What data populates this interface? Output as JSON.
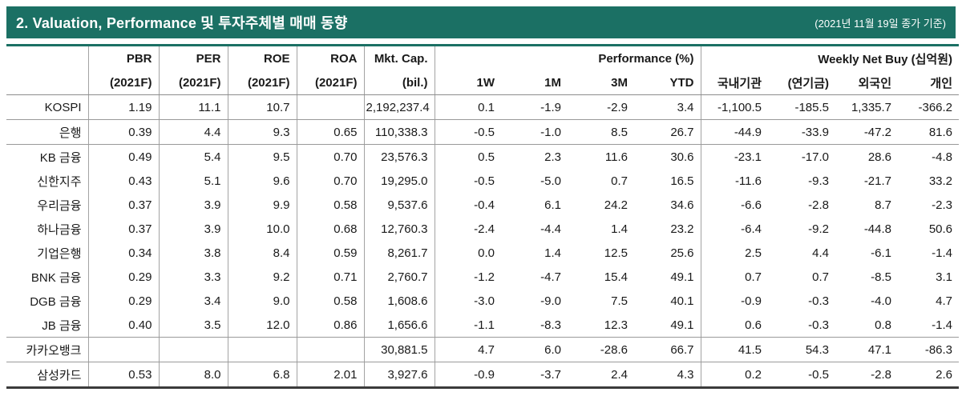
{
  "header_bar": {
    "title": "2. Valuation, Performance 및 투자주체별 매매 동향",
    "date_note": "(2021년 11월 19일 종가 기준)"
  },
  "colors": {
    "accent_teal": "#1b7064",
    "grid_gray": "#9a9a9a",
    "bottom_border_dark": "#3b3b3b",
    "title_text": "#ffffff"
  },
  "table": {
    "metric_headers": [
      {
        "line1": "PBR",
        "line2": "(2021F)"
      },
      {
        "line1": "PER",
        "line2": "(2021F)"
      },
      {
        "line1": "ROE",
        "line2": "(2021F)"
      },
      {
        "line1": "ROA",
        "line2": "(2021F)"
      },
      {
        "line1": "Mkt. Cap.",
        "line2": "(bil.)"
      }
    ],
    "groups": [
      {
        "label": "Performance (%)",
        "columns": [
          "1W",
          "1M",
          "3M",
          "YTD"
        ]
      },
      {
        "label": "Weekly Net Buy (십억원)",
        "columns": [
          "국내기관",
          "(연기금)",
          "외국인",
          "개인"
        ]
      }
    ],
    "rows": [
      {
        "name": "KOSPI",
        "values": [
          "1.19",
          "11.1",
          "10.7",
          "",
          "2,192,237.4",
          "0.1",
          "-1.9",
          "-2.9",
          "3.4",
          "-1,100.5",
          "-185.5",
          "1,335.7",
          "-366.2"
        ],
        "separator_below": true
      },
      {
        "name": "은행",
        "values": [
          "0.39",
          "4.4",
          "9.3",
          "0.65",
          "110,338.3",
          "-0.5",
          "-1.0",
          "8.5",
          "26.7",
          "-44.9",
          "-33.9",
          "-47.2",
          "81.6"
        ],
        "separator_below": true
      },
      {
        "name": "KB 금융",
        "values": [
          "0.49",
          "5.4",
          "9.5",
          "0.70",
          "23,576.3",
          "0.5",
          "2.3",
          "11.6",
          "30.6",
          "-23.1",
          "-17.0",
          "28.6",
          "-4.8"
        ],
        "separator_below": false
      },
      {
        "name": "신한지주",
        "values": [
          "0.43",
          "5.1",
          "9.6",
          "0.70",
          "19,295.0",
          "-0.5",
          "-5.0",
          "0.7",
          "16.5",
          "-11.6",
          "-9.3",
          "-21.7",
          "33.2"
        ],
        "separator_below": false
      },
      {
        "name": "우리금융",
        "values": [
          "0.37",
          "3.9",
          "9.9",
          "0.58",
          "9,537.6",
          "-0.4",
          "6.1",
          "24.2",
          "34.6",
          "-6.6",
          "-2.8",
          "8.7",
          "-2.3"
        ],
        "separator_below": false
      },
      {
        "name": "하나금융",
        "values": [
          "0.37",
          "3.9",
          "10.0",
          "0.68",
          "12,760.3",
          "-2.4",
          "-4.4",
          "1.4",
          "23.2",
          "-6.4",
          "-9.2",
          "-44.8",
          "50.6"
        ],
        "separator_below": false
      },
      {
        "name": "기업은행",
        "values": [
          "0.34",
          "3.8",
          "8.4",
          "0.59",
          "8,261.7",
          "0.0",
          "1.4",
          "12.5",
          "25.6",
          "2.5",
          "4.4",
          "-6.1",
          "-1.4"
        ],
        "separator_below": false
      },
      {
        "name": "BNK 금융",
        "values": [
          "0.29",
          "3.3",
          "9.2",
          "0.71",
          "2,760.7",
          "-1.2",
          "-4.7",
          "15.4",
          "49.1",
          "0.7",
          "0.7",
          "-8.5",
          "3.1"
        ],
        "separator_below": false
      },
      {
        "name": "DGB 금융",
        "values": [
          "0.29",
          "3.4",
          "9.0",
          "0.58",
          "1,608.6",
          "-3.0",
          "-9.0",
          "7.5",
          "40.1",
          "-0.9",
          "-0.3",
          "-4.0",
          "4.7"
        ],
        "separator_below": false
      },
      {
        "name": "JB 금융",
        "values": [
          "0.40",
          "3.5",
          "12.0",
          "0.86",
          "1,656.6",
          "-1.1",
          "-8.3",
          "12.3",
          "49.1",
          "0.6",
          "-0.3",
          "0.8",
          "-1.4"
        ],
        "separator_below": true
      },
      {
        "name": "카카오뱅크",
        "values": [
          "",
          "",
          "",
          "",
          "30,881.5",
          "4.7",
          "6.0",
          "-28.6",
          "66.7",
          "41.5",
          "54.3",
          "47.1",
          "-86.3"
        ],
        "separator_below": true
      },
      {
        "name": "삼성카드",
        "values": [
          "0.53",
          "8.0",
          "6.8",
          "2.01",
          "3,927.6",
          "-0.9",
          "-3.7",
          "2.4",
          "4.3",
          "0.2",
          "-0.5",
          "-2.8",
          "2.6"
        ],
        "separator_below": false
      }
    ]
  }
}
